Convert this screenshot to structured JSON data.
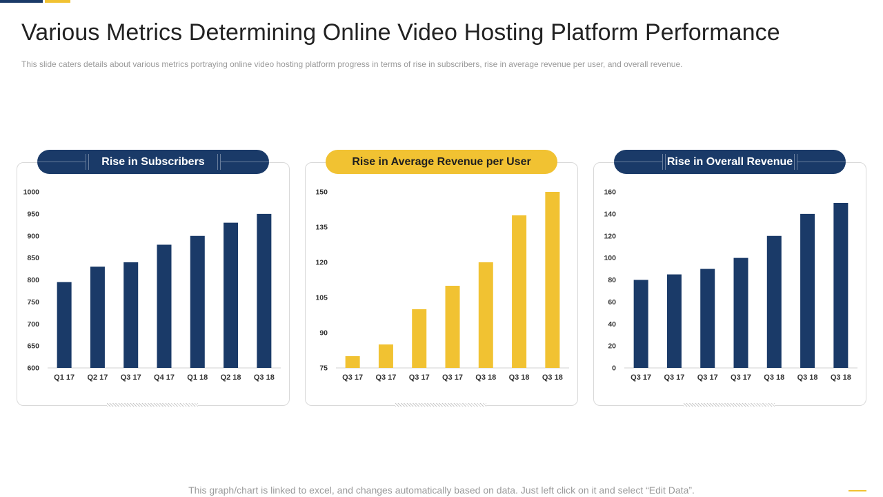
{
  "slide": {
    "title": "Various Metrics Determining Online Video Hosting Platform Performance",
    "subtitle": "This slide caters details about various  metrics portraying  online video  hosting platform progress  in terms of rise in subscribers, rise in average  revenue  per user, and overall  revenue.",
    "footer": "This graph/chart is linked to excel, and changes automatically based on data. Just left click on it and select “Edit Data”."
  },
  "colors": {
    "navy": "#1a3a68",
    "gold": "#f1c232"
  },
  "chart_data": [
    {
      "type": "bar",
      "title": "Rise in Subscribers",
      "color": "#1a3a68",
      "categories": [
        "Q1 17",
        "Q2 17",
        "Q3 17",
        "Q4 17",
        "Q1 18",
        "Q2 18",
        "Q3 18"
      ],
      "values": [
        795,
        830,
        840,
        880,
        900,
        930,
        950
      ],
      "ylim": [
        600,
        1000
      ],
      "yticks": [
        600,
        650,
        700,
        750,
        800,
        850,
        900,
        950,
        1000
      ],
      "xlabel": "",
      "ylabel": "",
      "grid": false
    },
    {
      "type": "bar",
      "title": "Rise in Average Revenue per User",
      "color": "#f1c232",
      "categories": [
        "Q3 17",
        "Q3 17",
        "Q3 17",
        "Q3 17",
        "Q3 18",
        "Q3 18",
        "Q3 18"
      ],
      "values": [
        80,
        85,
        100,
        110,
        120,
        140,
        150
      ],
      "ylim": [
        75,
        150
      ],
      "yticks": [
        75,
        90,
        105,
        120,
        135,
        150
      ],
      "xlabel": "",
      "ylabel": "",
      "grid": false
    },
    {
      "type": "bar",
      "title": "Rise in Overall Revenue",
      "color": "#1a3a68",
      "categories": [
        "Q3 17",
        "Q3 17",
        "Q3 17",
        "Q3 17",
        "Q3 18",
        "Q3 18",
        "Q3 18"
      ],
      "values": [
        80,
        85,
        90,
        100,
        120,
        140,
        150
      ],
      "ylim": [
        0,
        160
      ],
      "yticks": [
        0,
        20,
        40,
        60,
        80,
        100,
        120,
        140,
        160
      ],
      "xlabel": "",
      "ylabel": "",
      "grid": false
    }
  ]
}
